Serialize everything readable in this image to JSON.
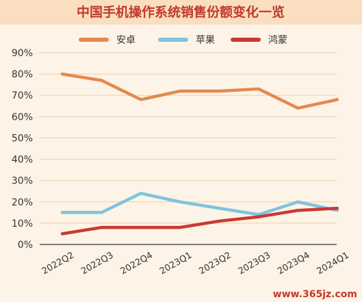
{
  "colors": {
    "background": "#fdf3e6",
    "title_band": "#fadec0",
    "title_text": "#c0392b",
    "grid": "#f2cfa6",
    "axis": "#333333"
  },
  "chart_data": {
    "type": "line",
    "title": "中国手机操作系统销售份额变化一览",
    "categories": [
      "2022Q2",
      "2022Q3",
      "2022Q4",
      "2023Q1",
      "2023Q2",
      "2023Q3",
      "2023Q4",
      "2024Q1"
    ],
    "series": [
      {
        "name": "安卓",
        "color": "#e4894e",
        "values": [
          80,
          77,
          68,
          72,
          72,
          73,
          64,
          68
        ]
      },
      {
        "name": "苹果",
        "color": "#7ec3df",
        "values": [
          15,
          15,
          24,
          20,
          17,
          14,
          20,
          16
        ]
      },
      {
        "name": "鸿蒙",
        "color": "#c83a32",
        "values": [
          5,
          8,
          8,
          8,
          11,
          13,
          16,
          17
        ]
      }
    ],
    "ylim": [
      0,
      90
    ],
    "yticks": [
      0,
      10,
      20,
      30,
      40,
      50,
      60,
      70,
      80,
      90
    ],
    "y_tick_labels": [
      "0%",
      "10%",
      "20%",
      "30%",
      "40%",
      "50%",
      "60%",
      "70%",
      "80%",
      "90%"
    ],
    "grid": true,
    "legend_position": "top"
  },
  "watermark": "www.365jz.com"
}
